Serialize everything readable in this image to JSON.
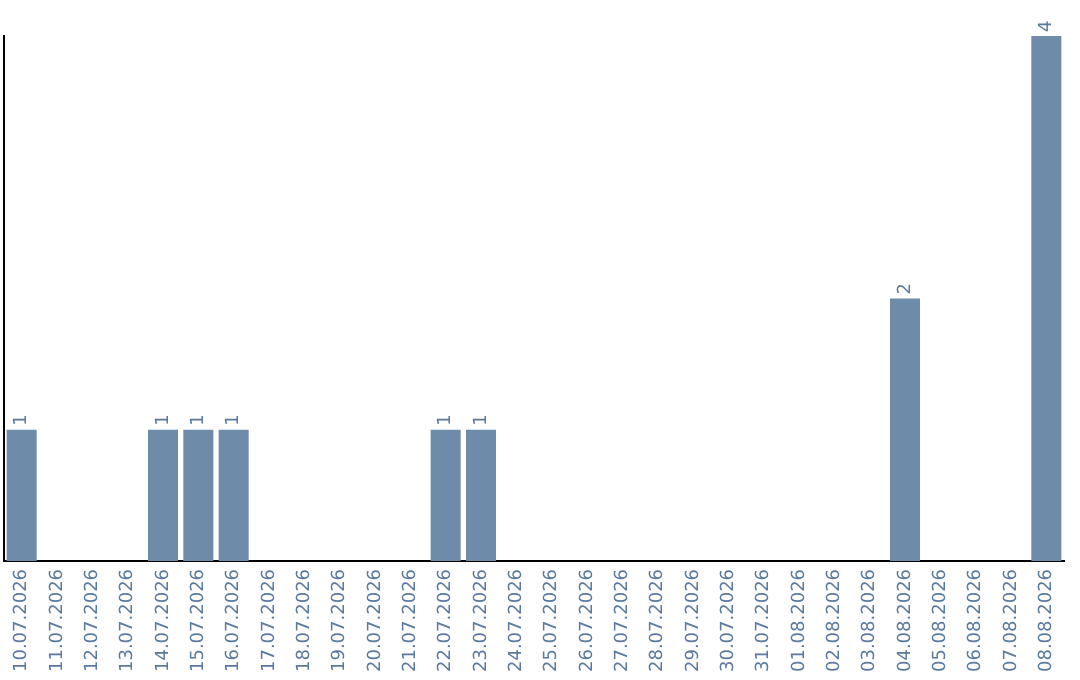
{
  "chart_data": {
    "type": "bar",
    "categories": [
      "10.07.2026",
      "11.07.2026",
      "12.07.2026",
      "13.07.2026",
      "14.07.2026",
      "15.07.2026",
      "16.07.2026",
      "17.07.2026",
      "18.07.2026",
      "19.07.2026",
      "20.07.2026",
      "21.07.2026",
      "22.07.2026",
      "23.07.2026",
      "24.07.2026",
      "25.07.2026",
      "26.07.2026",
      "27.07.2026",
      "28.07.2026",
      "29.07.2026",
      "30.07.2026",
      "31.07.2026",
      "01.08.2026",
      "02.08.2026",
      "03.08.2026",
      "04.08.2026",
      "05.08.2026",
      "06.08.2026",
      "07.08.2026",
      "08.08.2026"
    ],
    "values": [
      1,
      0,
      0,
      0,
      1,
      1,
      1,
      0,
      0,
      0,
      0,
      0,
      1,
      1,
      0,
      0,
      0,
      0,
      0,
      0,
      0,
      0,
      0,
      0,
      0,
      2,
      0,
      0,
      0,
      4
    ],
    "value_labels": [
      "1",
      null,
      null,
      null,
      "1",
      "1",
      "1",
      null,
      null,
      null,
      null,
      null,
      "1",
      "1",
      null,
      null,
      null,
      null,
      null,
      null,
      null,
      null,
      null,
      null,
      null,
      "2",
      null,
      null,
      null,
      "4"
    ],
    "color": "#6e8caa",
    "grid": false,
    "legend": false,
    "tick_labels": "x"
  }
}
